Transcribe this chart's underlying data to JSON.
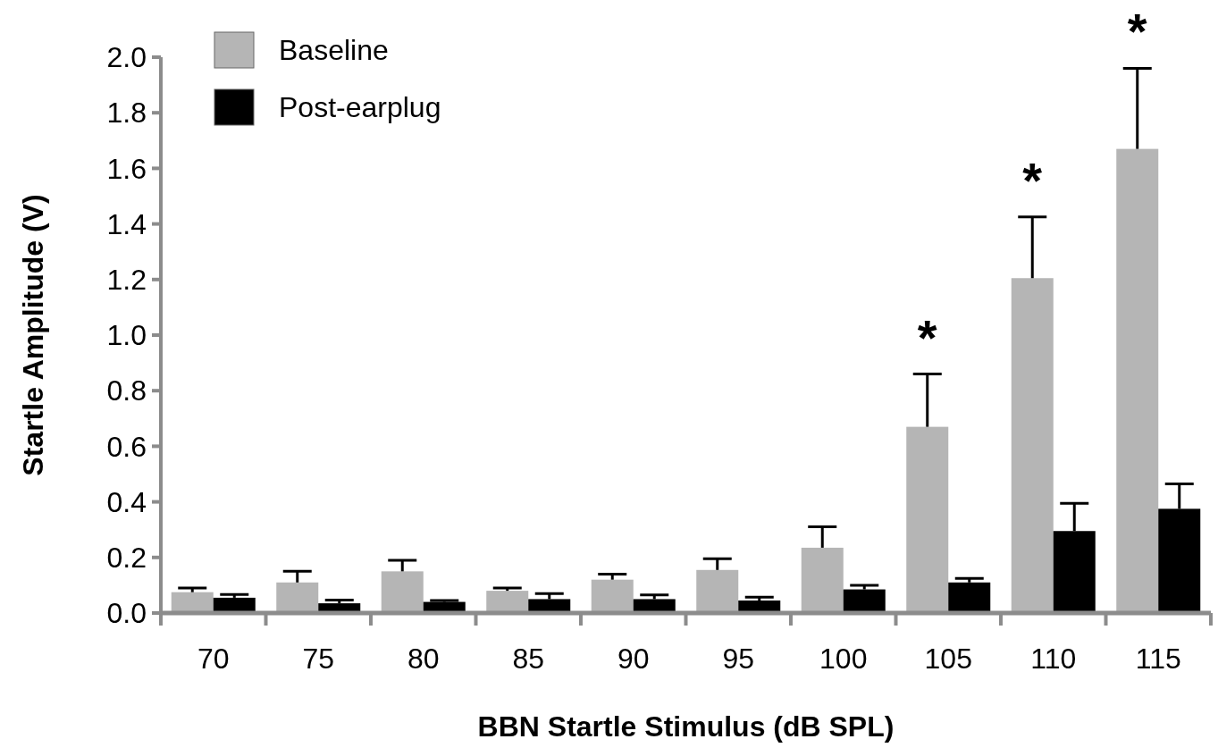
{
  "chart_data": {
    "type": "bar",
    "xlabel": "BBN Startle Stimulus (dB SPL)",
    "ylabel": "Startle Amplitude (V)",
    "categories": [
      "70",
      "75",
      "80",
      "85",
      "90",
      "95",
      "100",
      "105",
      "110",
      "115"
    ],
    "series": [
      {
        "name": "Baseline",
        "color": "#b5b5b5",
        "values": [
          0.075,
          0.11,
          0.15,
          0.08,
          0.12,
          0.155,
          0.235,
          0.67,
          1.205,
          1.67
        ],
        "errors": [
          0.015,
          0.04,
          0.04,
          0.01,
          0.02,
          0.04,
          0.075,
          0.19,
          0.22,
          0.29
        ]
      },
      {
        "name": "Post-earplug",
        "color": "#000000",
        "values": [
          0.055,
          0.035,
          0.04,
          0.05,
          0.05,
          0.045,
          0.085,
          0.11,
          0.295,
          0.375
        ],
        "errors": [
          0.012,
          0.012,
          0.005,
          0.02,
          0.015,
          0.012,
          0.015,
          0.015,
          0.1,
          0.09
        ]
      }
    ],
    "ylim": [
      0,
      2
    ],
    "yticks": [
      {
        "value": 0,
        "label": "0.0"
      },
      {
        "value": 0.2,
        "label": "0.2"
      },
      {
        "value": 0.4,
        "label": "0.4"
      },
      {
        "value": 0.6,
        "label": "0.6"
      },
      {
        "value": 0.8,
        "label": "0.8"
      },
      {
        "value": 1,
        "label": "1.0"
      },
      {
        "value": 1.2,
        "label": "1.2"
      },
      {
        "value": 1.4,
        "label": "1.4"
      },
      {
        "value": 1.6,
        "label": "1.6"
      },
      {
        "value": 1.8,
        "label": "1.8"
      },
      {
        "value": 2,
        "label": "2.0"
      }
    ],
    "annotations": [
      "*",
      "*",
      "*"
    ],
    "legend": "top left",
    "grid": false
  }
}
